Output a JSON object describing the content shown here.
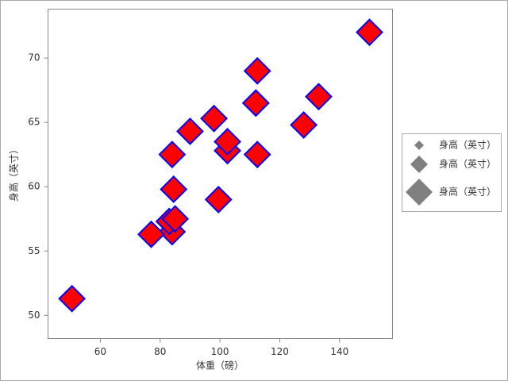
{
  "chart_data": {
    "type": "scatter",
    "x_label": "体重（磅）",
    "y_label": "身高（英寸）",
    "x": [
      112.5,
      84,
      98,
      102.5,
      102.5,
      83,
      84.5,
      112.5,
      84,
      99.5,
      50.5,
      90,
      77,
      112,
      150,
      128,
      133,
      85,
      112
    ],
    "values": [
      69,
      56.5,
      65.3,
      62.8,
      63.5,
      57.3,
      59.8,
      62.5,
      62.5,
      59,
      51.3,
      64.3,
      56.3,
      66.5,
      72,
      64.8,
      67,
      57.5,
      66.5
    ],
    "color": "#ff0000",
    "edge_color": "#0000ff",
    "xlim": [
      42.5,
      157.7
    ],
    "xticks": [
      60,
      80,
      100,
      120,
      140
    ],
    "ylim": [
      48.2,
      73.8
    ],
    "yticks": [
      50,
      55,
      60,
      65,
      70
    ],
    "legend_entries": [
      "身高（英寸）",
      "身高（英寸）",
      "身高（英寸）"
    ],
    "legend_color": "#808080",
    "legend": "right"
  }
}
